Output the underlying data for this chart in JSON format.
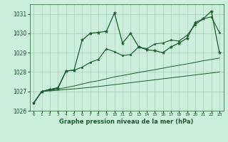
{
  "title": "Graphe pression niveau de la mer (hPa)",
  "bg_color": "#cceedd",
  "grid_color": "#aaccbb",
  "line_color": "#1a5c2a",
  "xlim": [
    -0.5,
    23.5
  ],
  "ylim": [
    1026.0,
    1031.5
  ],
  "yticks": [
    1026,
    1027,
    1028,
    1029,
    1030,
    1031
  ],
  "xticks": [
    0,
    1,
    2,
    3,
    4,
    5,
    6,
    7,
    8,
    9,
    10,
    11,
    12,
    13,
    14,
    15,
    16,
    17,
    18,
    19,
    20,
    21,
    22,
    23
  ],
  "y_main": [
    1026.4,
    1027.0,
    1027.1,
    1027.15,
    1028.05,
    1028.1,
    1029.65,
    1030.0,
    1030.05,
    1030.1,
    1031.05,
    1029.5,
    1030.0,
    1029.3,
    1029.15,
    1029.1,
    1029.0,
    1029.3,
    1029.5,
    1029.75,
    1030.55,
    1030.75,
    1031.15,
    1029.0
  ],
  "y_upper": [
    1026.4,
    1027.0,
    1027.1,
    1027.2,
    1028.05,
    1028.1,
    1028.25,
    1028.5,
    1028.65,
    1029.2,
    1029.05,
    1028.85,
    1028.9,
    1029.3,
    1029.2,
    1029.45,
    1029.5,
    1029.65,
    1029.6,
    1029.9,
    1030.45,
    1030.75,
    1030.85,
    1030.05
  ],
  "y_mid": [
    1026.4,
    1027.0,
    1027.05,
    1027.12,
    1027.2,
    1027.28,
    1027.38,
    1027.48,
    1027.55,
    1027.65,
    1027.75,
    1027.82,
    1027.9,
    1027.98,
    1028.05,
    1028.12,
    1028.2,
    1028.28,
    1028.35,
    1028.42,
    1028.5,
    1028.58,
    1028.65,
    1028.72
  ],
  "y_lower": [
    1026.4,
    1027.0,
    1027.03,
    1027.06,
    1027.1,
    1027.13,
    1027.17,
    1027.21,
    1027.25,
    1027.3,
    1027.35,
    1027.4,
    1027.45,
    1027.5,
    1027.55,
    1027.6,
    1027.65,
    1027.7,
    1027.75,
    1027.8,
    1027.85,
    1027.9,
    1027.95,
    1028.0
  ]
}
